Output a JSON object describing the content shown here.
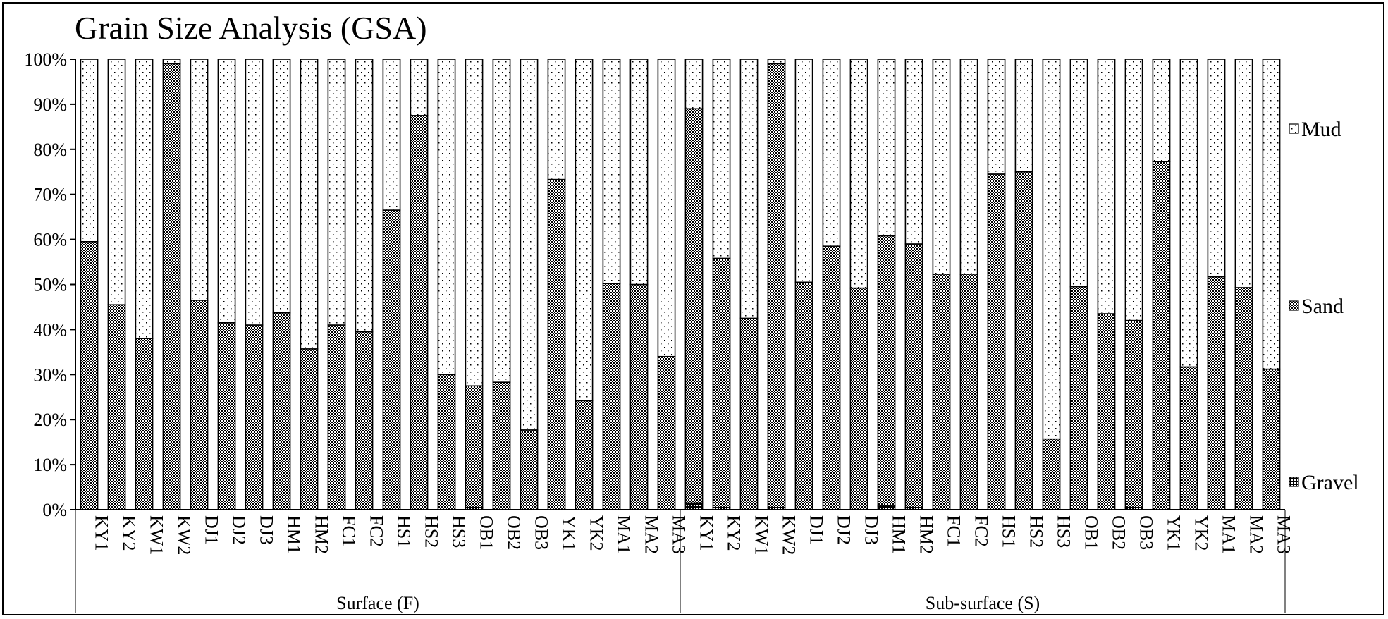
{
  "chart_data": {
    "type": "bar",
    "stacked": true,
    "percent": true,
    "title": "Grain Size Analysis (GSA)",
    "ylim": [
      0,
      100
    ],
    "y_ticks": [
      "0%",
      "10%",
      "20%",
      "30%",
      "40%",
      "50%",
      "60%",
      "70%",
      "80%",
      "90%",
      "100%"
    ],
    "groups": [
      {
        "label": "Surface (F)",
        "categories": [
          "KY1",
          "KY2",
          "KW1",
          "KW2",
          "DJ1",
          "DJ2",
          "DJ3",
          "HM1",
          "HM2",
          "FC1",
          "FC2",
          "HS1",
          "HS2",
          "HS3",
          "OB1",
          "OB2",
          "OB3",
          "YK1",
          "YK2",
          "MA1",
          "MA2",
          "MA3"
        ]
      },
      {
        "label": "Sub-surface (S)",
        "categories": [
          "KY1",
          "KY2",
          "KW1",
          "KW2",
          "DJ1",
          "DJ2",
          "DJ3",
          "HM1",
          "HM2",
          "FC1",
          "FC2",
          "HS1",
          "HS2",
          "HS3",
          "OB1",
          "OB2",
          "OB3",
          "YK1",
          "YK2",
          "MA1",
          "MA2",
          "MA3"
        ]
      }
    ],
    "series": [
      {
        "name": "Gravel",
        "values": [
          0,
          0,
          0,
          0,
          0,
          0,
          0,
          0,
          0,
          0,
          0,
          0,
          0,
          0,
          0.5,
          0,
          0,
          0,
          0,
          0,
          0,
          0,
          1.5,
          0.5,
          0,
          0.5,
          0,
          0,
          0,
          0.8,
          0.5,
          0,
          0,
          0,
          0,
          0,
          0,
          0,
          0.5,
          0,
          0,
          0,
          0,
          0
        ]
      },
      {
        "name": "Sand",
        "values": [
          59.5,
          45.5,
          38,
          99,
          46.5,
          41.5,
          41,
          43.7,
          35.7,
          41,
          39.5,
          66.5,
          87.5,
          30,
          27,
          28.3,
          17.7,
          73.3,
          24.2,
          50.2,
          50,
          34,
          87.5,
          55.3,
          42.5,
          98.5,
          50.5,
          58.5,
          49.2,
          60,
          58.5,
          52.3,
          52.3,
          74.5,
          75,
          15.7,
          49.5,
          43.5,
          41.5,
          77.3,
          31.7,
          51.7,
          49.3,
          31.2
        ]
      },
      {
        "name": "Mud",
        "values": [
          40.5,
          54.5,
          62,
          1,
          53.5,
          58.5,
          59,
          56.3,
          64.3,
          59,
          60.5,
          33.5,
          12.5,
          70,
          72.5,
          71.7,
          82.3,
          26.7,
          75.8,
          49.8,
          50,
          66,
          11,
          44.2,
          57.5,
          1,
          49.5,
          41.5,
          50.8,
          39.2,
          41,
          47.7,
          47.7,
          25.5,
          25,
          84.3,
          50.5,
          56.5,
          58,
          22.7,
          68.3,
          48.3,
          50.7,
          68.8
        ]
      }
    ],
    "legend": [
      "Mud",
      "Sand",
      "Gravel"
    ],
    "legend_position": "right",
    "grid": false
  }
}
